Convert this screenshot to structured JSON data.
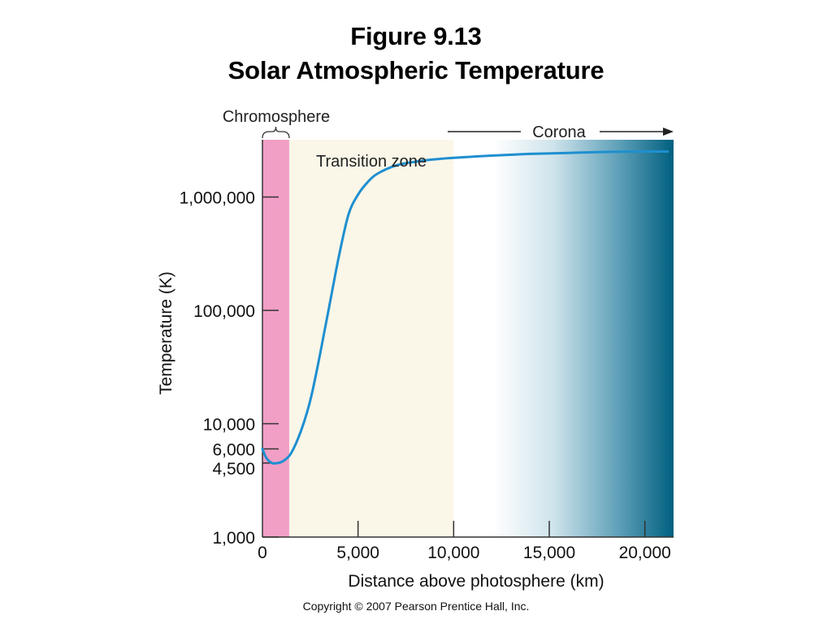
{
  "header": {
    "figure_number": "Figure 9.13",
    "title": "Solar Atmospheric Temperature"
  },
  "footer": {
    "copyright": "Copyright © 2007 Pearson Prentice Hall, Inc."
  },
  "colors": {
    "chromosphere": "#f29fc6",
    "transition_zone": "#faf6e8",
    "corona_dark": "#006080",
    "curve": "#1e8fd0"
  },
  "chart_data": {
    "type": "line",
    "xlabel": "Distance above photosphere (km)",
    "ylabel": "Temperature (K)",
    "xlim": [
      0,
      21500
    ],
    "ylim": [
      1000,
      3200000
    ],
    "y_scale": "log",
    "x_ticks": [
      0,
      5000,
      10000,
      15000,
      20000
    ],
    "x_tick_labels": [
      "0",
      "5,000",
      "10,000",
      "15,000",
      "20,000"
    ],
    "y_ticks": [
      1000,
      4500,
      6000,
      10000,
      100000,
      1000000
    ],
    "y_tick_labels": [
      "1,000",
      "4,500",
      "6,000",
      "10,000",
      "100,000",
      "1,000,000"
    ],
    "regions": [
      {
        "label": "Chromosphere",
        "x_start": 0,
        "x_end": 1400
      },
      {
        "label": "Transition zone",
        "x_start": 1400,
        "x_end": 10000
      },
      {
        "label": "Corona",
        "x_start": 10000,
        "x_end": 21500
      }
    ],
    "series": [
      {
        "x": [
          0,
          200,
          500,
          800,
          1100,
          1500,
          2000,
          2500,
          3000,
          3500,
          4000,
          4500,
          5000,
          5500,
          6000,
          7000,
          8000,
          9000,
          10000,
          12000,
          14000,
          16000,
          18000,
          20000,
          21200
        ],
        "y": [
          6000,
          5000,
          4500,
          4500,
          4700,
          5500,
          8500,
          16000,
          40000,
          110000,
          300000,
          700000,
          1050000,
          1350000,
          1600000,
          1900000,
          2050000,
          2150000,
          2220000,
          2320000,
          2400000,
          2450000,
          2500000,
          2520000,
          2520000
        ]
      }
    ]
  }
}
